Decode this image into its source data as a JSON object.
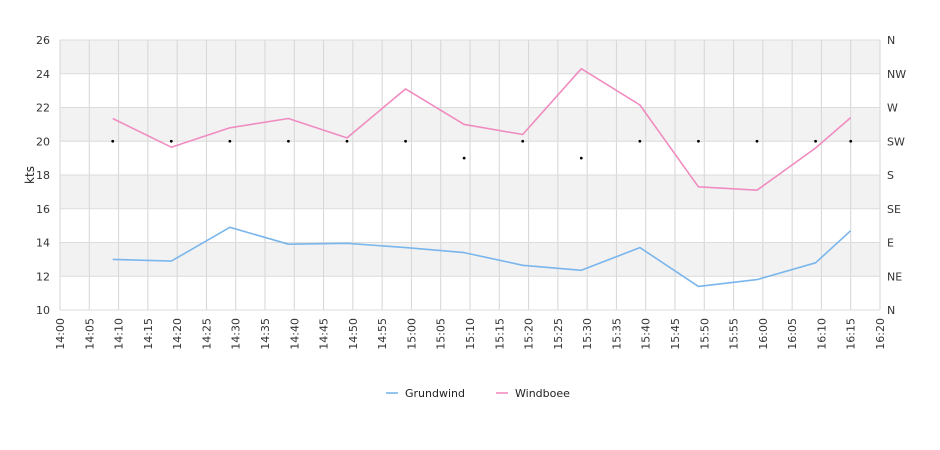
{
  "chart_data": {
    "type": "line",
    "ylabel": "kts",
    "ylim": [
      10,
      26
    ],
    "y_ticks": [
      "10",
      "12",
      "14",
      "16",
      "18",
      "20",
      "22",
      "24",
      "26"
    ],
    "x_ticks": [
      "14:00",
      "14:05",
      "14:10",
      "14:15",
      "14:20",
      "14:25",
      "14:30",
      "14:35",
      "14:40",
      "14:45",
      "14:50",
      "14:55",
      "15:00",
      "15:05",
      "15:10",
      "15:15",
      "15:20",
      "15:25",
      "15:30",
      "15:35",
      "15:40",
      "15:45",
      "15:50",
      "15:55",
      "16:00",
      "16:05",
      "16:10",
      "16:15",
      "16:20"
    ],
    "x_range": [
      "14:00",
      "16:20"
    ],
    "right_axis": {
      "labels": [
        "N",
        "NE",
        "E",
        "SE",
        "S",
        "SW",
        "W",
        "NW",
        "N"
      ]
    },
    "grid": true,
    "legend_position": "bottom",
    "series": [
      {
        "name": "Grundwind",
        "color": "#7ab6ec",
        "x": [
          "14:09",
          "14:19",
          "14:29",
          "14:39",
          "14:49",
          "14:59",
          "15:09",
          "15:19",
          "15:29",
          "15:39",
          "15:49",
          "15:59",
          "16:09",
          "16:15"
        ],
        "values": [
          13.0,
          12.9,
          14.9,
          13.9,
          13.95,
          13.7,
          13.4,
          12.65,
          12.35,
          13.7,
          11.4,
          11.8,
          12.8,
          14.7
        ]
      },
      {
        "name": "Windboee",
        "color": "#f08cc0",
        "x": [
          "14:09",
          "14:19",
          "14:29",
          "14:39",
          "14:49",
          "14:59",
          "15:09",
          "15:19",
          "15:29",
          "15:39",
          "15:49",
          "15:59",
          "16:09",
          "16:15"
        ],
        "values": [
          21.35,
          19.65,
          20.8,
          21.35,
          20.2,
          23.1,
          21.0,
          20.4,
          24.3,
          22.15,
          17.3,
          17.1,
          19.6,
          21.4
        ]
      }
    ],
    "direction_points": {
      "x": [
        "14:09",
        "14:19",
        "14:29",
        "14:39",
        "14:49",
        "14:59",
        "15:09",
        "15:19",
        "15:29",
        "15:39",
        "15:49",
        "15:59",
        "16:09",
        "16:15"
      ],
      "values": [
        "SW",
        "SW",
        "SW",
        "SW",
        "SW",
        "SW",
        "SSW",
        "SW",
        "SSW",
        "SW",
        "SW",
        "SW",
        "SW",
        "SW"
      ]
    }
  }
}
